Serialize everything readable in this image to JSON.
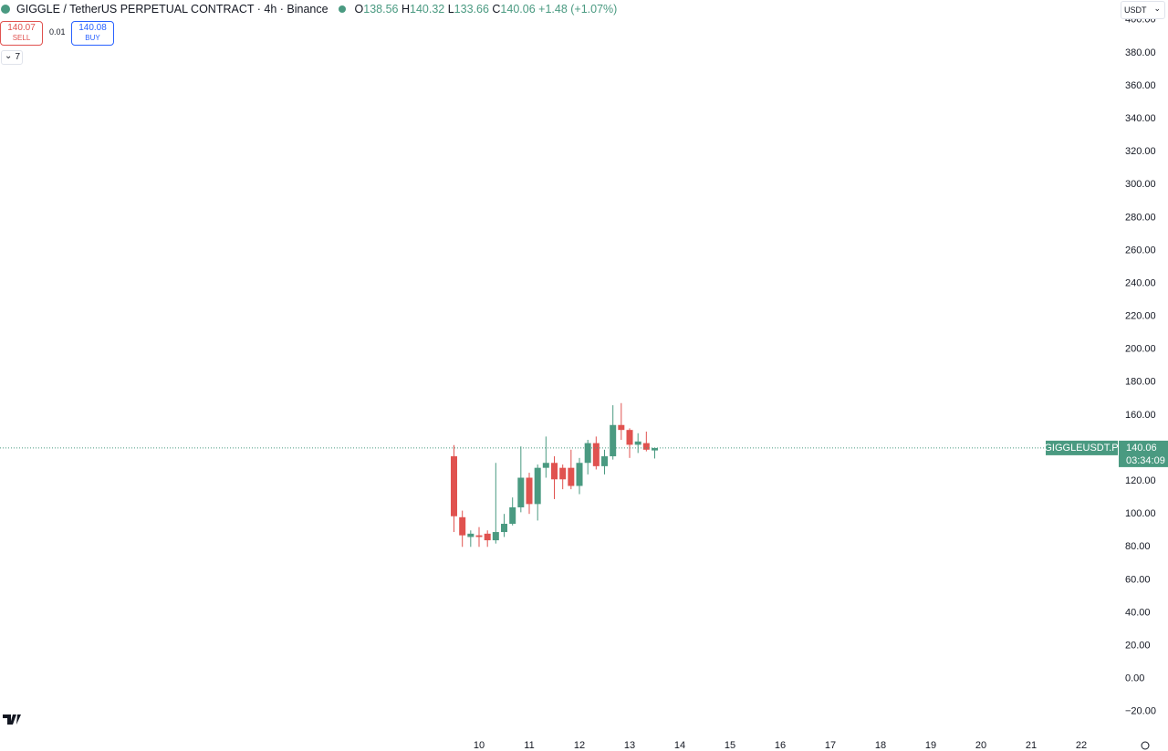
{
  "header": {
    "title": "GIGGLE / TetherUS PERPETUAL CONTRACT · 4h · Binance",
    "o": "O",
    "h": "H",
    "l": "L",
    "c": "C",
    "change": "+1.48 (+1.07%)"
  },
  "trade": {
    "sell_price": "140.07",
    "sell_label": "SELL",
    "spread": "0.01",
    "buy_price": "140.08",
    "buy_label": "BUY"
  },
  "indicators": "7",
  "currency": "USDT",
  "chart_data": {
    "type": "candlestick",
    "up_color": "#4a9a81",
    "down_color": "#e0524f",
    "x": [
      9.5,
      9.667,
      9.833,
      10,
      10.167,
      10.333,
      10.5,
      10.667,
      10.833,
      11,
      11.167,
      11.333,
      11.5,
      11.667,
      11.833,
      12,
      12.167,
      12.333,
      12.5,
      12.667,
      12.833,
      13,
      13.167,
      13.333,
      13.5
    ],
    "open": [
      135,
      98,
      86,
      87,
      88,
      84,
      89,
      94,
      104,
      122,
      106,
      128,
      131,
      128,
      128,
      117,
      131,
      143,
      129,
      135,
      154,
      151,
      142,
      143,
      138.56
    ],
    "high": [
      141.8,
      102,
      90,
      92,
      90,
      131,
      100,
      110,
      141,
      125,
      130,
      147,
      135,
      130,
      139,
      134,
      145,
      147,
      139,
      166,
      167.3,
      152,
      149,
      150,
      140.32
    ],
    "low": [
      89,
      80,
      80,
      80,
      80,
      82,
      86,
      93,
      101,
      100,
      96,
      122,
      109,
      115,
      115,
      112,
      124,
      127,
      124,
      133,
      145,
      134,
      137,
      138,
      133.66
    ],
    "close": [
      98.6,
      87,
      88,
      86,
      84,
      89,
      94,
      104,
      122,
      106,
      128,
      131,
      121,
      121,
      117,
      131,
      143,
      129,
      135,
      154,
      151,
      142,
      144,
      139,
      140.06
    ],
    "xlim": [
      0.4545,
      22.727
    ],
    "xticks": [
      10,
      11,
      12,
      13,
      14,
      15,
      16,
      17,
      18,
      19,
      20,
      21,
      22
    ],
    "ylim": [
      -34,
      412.1
    ],
    "yticks": [
      {
        "value": -20,
        "label": "−20.00"
      },
      {
        "value": 0,
        "label": "0.00"
      },
      {
        "value": 20,
        "label": "20.00"
      },
      {
        "value": 40,
        "label": "40.00"
      },
      {
        "value": 60,
        "label": "60.00"
      },
      {
        "value": 80,
        "label": "80.00"
      },
      {
        "value": 100,
        "label": "100.00"
      },
      {
        "value": 120,
        "label": "120.00"
      },
      {
        "value": 140,
        "label": "140.00"
      },
      {
        "value": 160,
        "label": "160.00"
      },
      {
        "value": 180,
        "label": "180.00"
      },
      {
        "value": 200,
        "label": "200.00"
      },
      {
        "value": 220,
        "label": "220.00"
      },
      {
        "value": 240,
        "label": "240.00"
      },
      {
        "value": 260,
        "label": "260.00"
      },
      {
        "value": 280,
        "label": "280.00"
      },
      {
        "value": 300,
        "label": "300.00"
      },
      {
        "value": 320,
        "label": "320.00"
      },
      {
        "value": 340,
        "label": "340.00"
      },
      {
        "value": 360,
        "label": "360.00"
      },
      {
        "value": 380,
        "label": "380.00"
      },
      {
        "value": 400,
        "label": "400.00"
      }
    ],
    "symbol_label": "GIGGLEUSDT.P",
    "countdown": "03:34:09"
  }
}
